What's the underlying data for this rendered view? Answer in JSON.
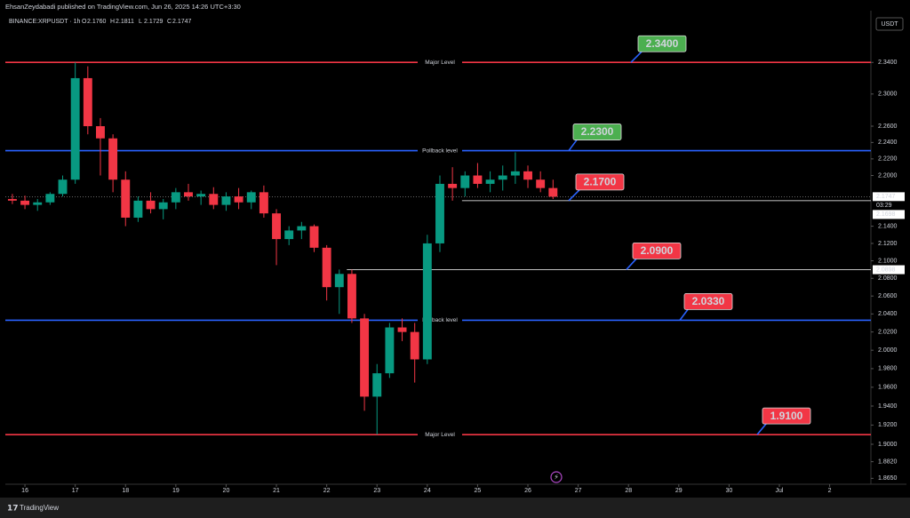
{
  "header": {
    "publisher": "EhsanZeydabadi published on TradingView.com, Jun 26, 2025 14:26 UTC+3:30",
    "symbol": "BINANCE:XRPUSDT · 1h",
    "ohlc": [
      {
        "key": "O",
        "value": "2.1760"
      },
      {
        "key": "H",
        "value": "2.1811"
      },
      {
        "key": "L",
        "value": "2.1729"
      },
      {
        "key": "C",
        "value": "2.1747"
      }
    ]
  },
  "footer": {
    "brand": "TradingView"
  },
  "chart_data": {
    "type": "candlestick",
    "currency": "USDT",
    "log_scale": true,
    "up_color": "#089981",
    "down_color": "#f23645",
    "x": [
      15.75,
      16.0,
      16.25,
      16.5,
      16.75,
      17.0,
      17.25,
      17.5,
      17.75,
      18.0,
      18.25,
      18.5,
      18.75,
      19.0,
      19.25,
      19.5,
      19.75,
      20.0,
      20.25,
      20.5,
      20.75,
      21.0,
      21.25,
      21.5,
      21.75,
      22.0,
      22.25,
      22.5,
      22.75,
      23.0,
      23.25,
      23.5,
      23.75,
      24.0,
      24.25,
      24.5,
      24.75,
      25.0,
      25.25,
      25.5,
      25.75,
      26.0,
      26.25,
      26.5
    ],
    "open": [
      2.172,
      2.17,
      2.165,
      2.168,
      2.178,
      2.195,
      2.32,
      2.26,
      2.245,
      2.195,
      2.15,
      2.17,
      2.16,
      2.168,
      2.18,
      2.175,
      2.178,
      2.165,
      2.175,
      2.168,
      2.18,
      2.155,
      2.125,
      2.135,
      2.14,
      2.115,
      2.07,
      2.085,
      2.035,
      1.95,
      1.975,
      2.025,
      2.02,
      1.99,
      2.12,
      2.19,
      2.185,
      2.2,
      2.19,
      2.195,
      2.2,
      2.205,
      2.195,
      2.185
    ],
    "high": [
      2.178,
      2.176,
      2.172,
      2.18,
      2.2,
      2.34,
      2.335,
      2.27,
      2.25,
      2.205,
      2.175,
      2.18,
      2.172,
      2.185,
      2.19,
      2.182,
      2.186,
      2.18,
      2.185,
      2.182,
      2.188,
      2.16,
      2.14,
      2.145,
      2.142,
      2.118,
      2.09,
      2.09,
      2.04,
      1.985,
      2.03,
      2.035,
      2.03,
      2.13,
      2.2,
      2.21,
      2.205,
      2.215,
      2.205,
      2.212,
      2.228,
      2.212,
      2.205,
      2.195
    ],
    "low": [
      2.166,
      2.16,
      2.158,
      2.165,
      2.175,
      2.19,
      2.25,
      2.2,
      2.18,
      2.14,
      2.145,
      2.155,
      2.148,
      2.16,
      2.17,
      2.165,
      2.16,
      2.158,
      2.16,
      2.16,
      2.15,
      2.095,
      2.118,
      2.125,
      2.11,
      2.055,
      2.04,
      2.03,
      1.935,
      1.91,
      1.97,
      2.01,
      1.965,
      1.985,
      2.11,
      2.17,
      2.175,
      2.185,
      2.18,
      2.182,
      2.19,
      2.185,
      2.18,
      2.172
    ],
    "close": [
      2.17,
      2.165,
      2.168,
      2.178,
      2.195,
      2.32,
      2.26,
      2.245,
      2.195,
      2.15,
      2.17,
      2.16,
      2.168,
      2.18,
      2.175,
      2.178,
      2.165,
      2.175,
      2.168,
      2.18,
      2.155,
      2.125,
      2.135,
      2.14,
      2.115,
      2.07,
      2.085,
      2.035,
      1.95,
      1.975,
      2.025,
      2.02,
      1.99,
      2.12,
      2.19,
      2.185,
      2.2,
      2.19,
      2.195,
      2.2,
      2.205,
      2.195,
      2.185,
      2.1747
    ],
    "xlim": [
      15.61,
      32.82
    ],
    "xticks": [
      16,
      17,
      18,
      19,
      20,
      21,
      22,
      23,
      24,
      25,
      26,
      27,
      28,
      29,
      30,
      {
        "value": 31,
        "label": "Jul"
      },
      {
        "value": 32,
        "label": "2"
      }
    ],
    "ylim": [
      1.859,
      2.4
    ],
    "yticks": [
      {
        "value": 2.34,
        "label": "2.3400"
      },
      {
        "value": 2.3,
        "label": "2.3000"
      },
      {
        "value": 2.26,
        "label": "2.2600"
      },
      {
        "value": 2.24,
        "label": "2.2400"
      },
      {
        "value": 2.22,
        "label": "2.2200"
      },
      {
        "value": 2.2,
        "label": "2.2000"
      },
      {
        "value": 2.14,
        "label": "2.1400"
      },
      {
        "value": 2.12,
        "label": "2.1200"
      },
      {
        "value": 2.1,
        "label": "2.1000"
      },
      {
        "value": 2.08,
        "label": "2.0800"
      },
      {
        "value": 2.06,
        "label": "2.0600"
      },
      {
        "value": 2.04,
        "label": "2.0400"
      },
      {
        "value": 2.02,
        "label": "2.0200"
      },
      {
        "value": 2.0,
        "label": "2.0000"
      },
      {
        "value": 1.98,
        "label": "1.9800"
      },
      {
        "value": 1.96,
        "label": "1.9600"
      },
      {
        "value": 1.94,
        "label": "1.9400"
      },
      {
        "value": 1.92,
        "label": "1.9200"
      },
      {
        "value": 1.9,
        "label": "1.9000"
      },
      {
        "value": 1.882,
        "label": "1.8820"
      },
      {
        "value": 1.865,
        "label": "1.8650"
      }
    ],
    "last_price": 2.1747,
    "countdown": "03:29",
    "price_marks": [
      2.1698,
      2.0898
    ],
    "levels": [
      {
        "value": 2.34,
        "value_label": "2.3400",
        "note": "Major Level",
        "color": "#f23645",
        "box_color": "#4caf50"
      },
      {
        "value": 2.23,
        "value_label": "2.2300",
        "note": "Pollback level",
        "color": "#2962ff",
        "box_color": "#4caf50"
      },
      {
        "value": 2.17,
        "value_label": "2.1700",
        "color": "#ffffff",
        "box_color": "#f23645",
        "x_start": 24.69
      },
      {
        "value": 2.09,
        "value_label": "2.0900",
        "color": "#ffffff",
        "box_color": "#f23645",
        "x_start": 22.4
      },
      {
        "value": 2.033,
        "value_label": "2.0330",
        "note": "Pollback level",
        "color": "#2962ff",
        "box_color": "#f23645"
      },
      {
        "value": 1.91,
        "value_label": "1.9100",
        "note": "Major Level",
        "color": "#f23645",
        "box_color": "#f23645"
      }
    ]
  }
}
